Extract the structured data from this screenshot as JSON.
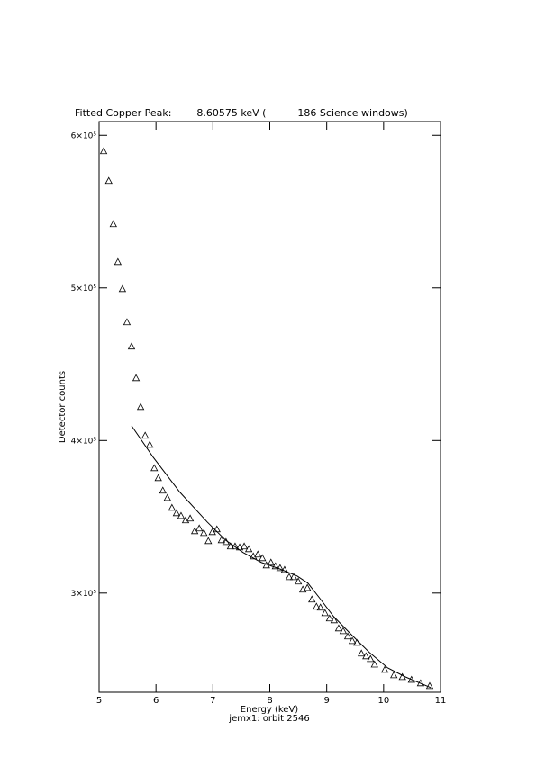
{
  "chart_data": {
    "type": "scatter",
    "title": "Fitted Copper Peak:        8.60575 keV (          186 Science windows)",
    "x_label": "Energy (keV)",
    "subtitle": "jemx1: orbit 2546",
    "y_label": "Detector counts",
    "xlim": [
      5,
      11
    ],
    "xticks": [
      5,
      6,
      7,
      8,
      9,
      10,
      11
    ],
    "ylim": [
      235000,
      609000
    ],
    "yticks": [
      {
        "value": 300000,
        "label": "3×10⁵"
      },
      {
        "value": 400000,
        "label": "4×10⁵"
      },
      {
        "value": 500000,
        "label": "5×10⁵"
      },
      {
        "value": 600000,
        "label": "6×10⁵"
      }
    ],
    "color": "#000000",
    "points": {
      "x": [
        5.08,
        5.17,
        5.25,
        5.33,
        5.41,
        5.49,
        5.57,
        5.65,
        5.73,
        5.81,
        5.89,
        5.97,
        6.04,
        6.12,
        6.2,
        6.28,
        6.36,
        6.44,
        6.52,
        6.6,
        6.68,
        6.76,
        6.84,
        6.92,
        6.99,
        7.07,
        7.15,
        7.23,
        7.31,
        7.39,
        7.47,
        7.55,
        7.63,
        7.71,
        7.79,
        7.87,
        7.94,
        8.02,
        8.1,
        8.18,
        8.26,
        8.34,
        8.42,
        8.5,
        8.58,
        8.66,
        8.74,
        8.82,
        8.89,
        8.97,
        9.05,
        9.13,
        9.21,
        9.29,
        9.37,
        9.45,
        9.53,
        9.61,
        9.69,
        9.77,
        9.84,
        10.02,
        10.18,
        10.33,
        10.49,
        10.65,
        10.81
      ],
      "values": [
        589700,
        570200,
        541900,
        517100,
        499400,
        477600,
        461700,
        441000,
        422100,
        403300,
        397300,
        382000,
        375500,
        367300,
        362500,
        356000,
        352500,
        350700,
        347800,
        349000,
        340700,
        342500,
        339500,
        334200,
        340100,
        341900,
        334800,
        333600,
        330700,
        330700,
        330100,
        330700,
        328900,
        324200,
        325400,
        323000,
        318300,
        320100,
        317700,
        316500,
        315300,
        310600,
        310600,
        307700,
        302400,
        303500,
        295900,
        291200,
        290600,
        287000,
        283500,
        282300,
        277000,
        275200,
        271700,
        268700,
        267500,
        260500,
        258700,
        256900,
        253300,
        249800,
        246300,
        245100,
        243300,
        241000,
        239200
      ]
    },
    "fit": {
      "x": [
        5.57,
        5.95,
        6.42,
        6.9,
        7.22,
        7.53,
        7.85,
        8.17,
        8.48,
        8.67,
        8.88,
        9.12,
        9.43,
        9.75,
        10.07,
        10.38,
        10.83
      ],
      "values": [
        409700,
        389100,
        366100,
        346600,
        334800,
        326600,
        320100,
        315900,
        311200,
        306500,
        296500,
        284700,
        272900,
        261100,
        251000,
        245100,
        238000
      ]
    }
  }
}
